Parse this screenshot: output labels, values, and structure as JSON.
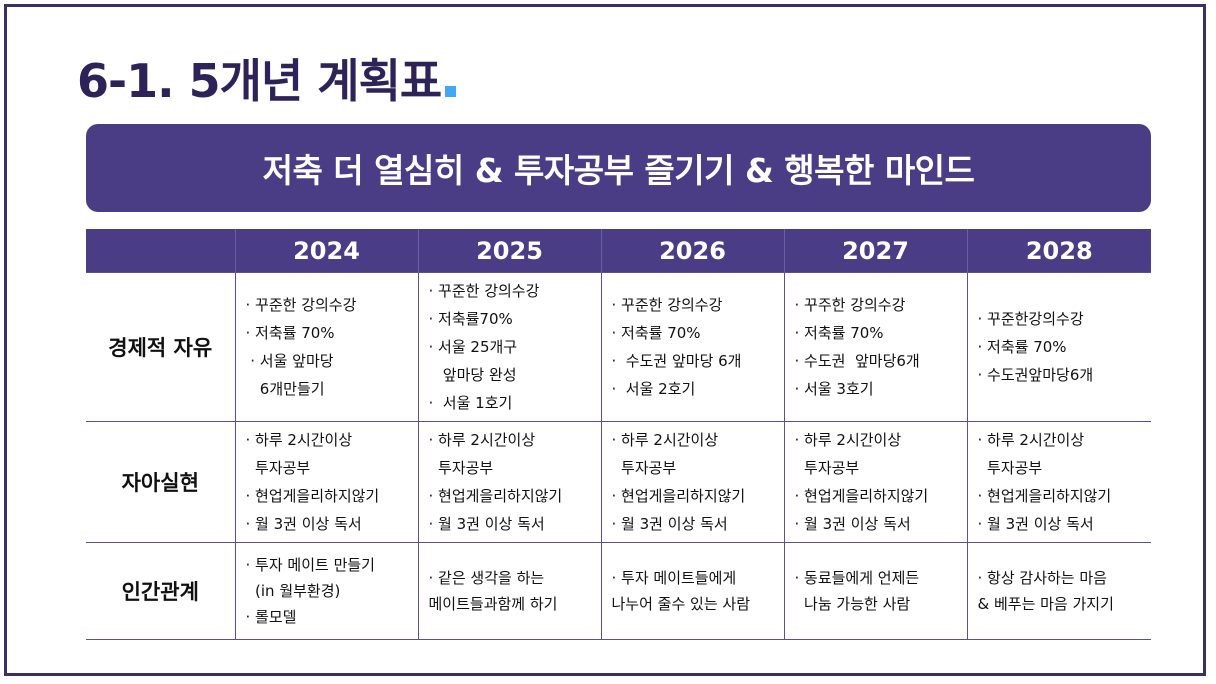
{
  "title": "6-1. 5개년 계획표",
  "banner": "저축 더 열심히 & 투자공부 즐기기 & 행복한 마인드",
  "colors": {
    "primary": "#4a3d86",
    "title": "#2e2358",
    "accent": "#3fa9f5"
  },
  "table": {
    "years": [
      "2024",
      "2025",
      "2026",
      "2027",
      "2028"
    ],
    "rows": [
      {
        "label": "경제적 자유",
        "cells": [
          [
            "· 꾸준한 강의수강",
            "· 저축률 70%",
            " · 서울 앞마당",
            "   6개만들기"
          ],
          [
            "· 꾸준한 강의수강",
            "· 저축률70%",
            "· 서울 25개구",
            "   앞마당 완성",
            "·  서울 1호기"
          ],
          [
            "· 꾸준한 강의수강",
            "· 저축률 70%",
            "·  수도권 앞마당 6개",
            "·  서울 2호기"
          ],
          [
            "· 꾸주한 강의수강",
            "· 저축률 70%",
            "· 수도권  앞마당6개",
            "· 서울 3호기"
          ],
          [
            "· 꾸준한강의수강",
            "· 저축률 70%",
            "· 수도권앞마당6개"
          ]
        ]
      },
      {
        "label": "자아실현",
        "cells": [
          [
            "· 하루 2시간이상",
            "  투자공부",
            "· 현업게을리하지않기",
            "· 월 3권 이상 독서"
          ],
          [
            "· 하루 2시간이상",
            "  투자공부",
            "· 현업게을리하지않기",
            "· 월 3권 이상 독서"
          ],
          [
            "· 하루 2시간이상",
            "  투자공부",
            "· 현업게을리하지않기",
            "· 월 3권 이상 독서"
          ],
          [
            "· 하루 2시간이상",
            "  투자공부",
            "· 현업게을리하지않기",
            "· 월 3권 이상 독서"
          ],
          [
            "· 하루 2시간이상",
            "  투자공부",
            "· 현업게을리하지않기",
            "· 월 3권 이상 독서"
          ]
        ]
      },
      {
        "label": "인간관계",
        "cells": [
          [
            "· 투자 메이트 만들기",
            "  (in 월부환경)",
            "· 롤모델"
          ],
          [
            "· 같은 생각을 하는",
            "메이트들과함께 하기"
          ],
          [
            "· 투자 메이트들에게",
            "나누어 줄수 있는 사람"
          ],
          [
            "· 동료들에게 언제든",
            "  나눔 가능한 사람"
          ],
          [
            "· 항상 감사하는 마음",
            "& 베푸는 마음 가지기"
          ]
        ]
      }
    ]
  }
}
